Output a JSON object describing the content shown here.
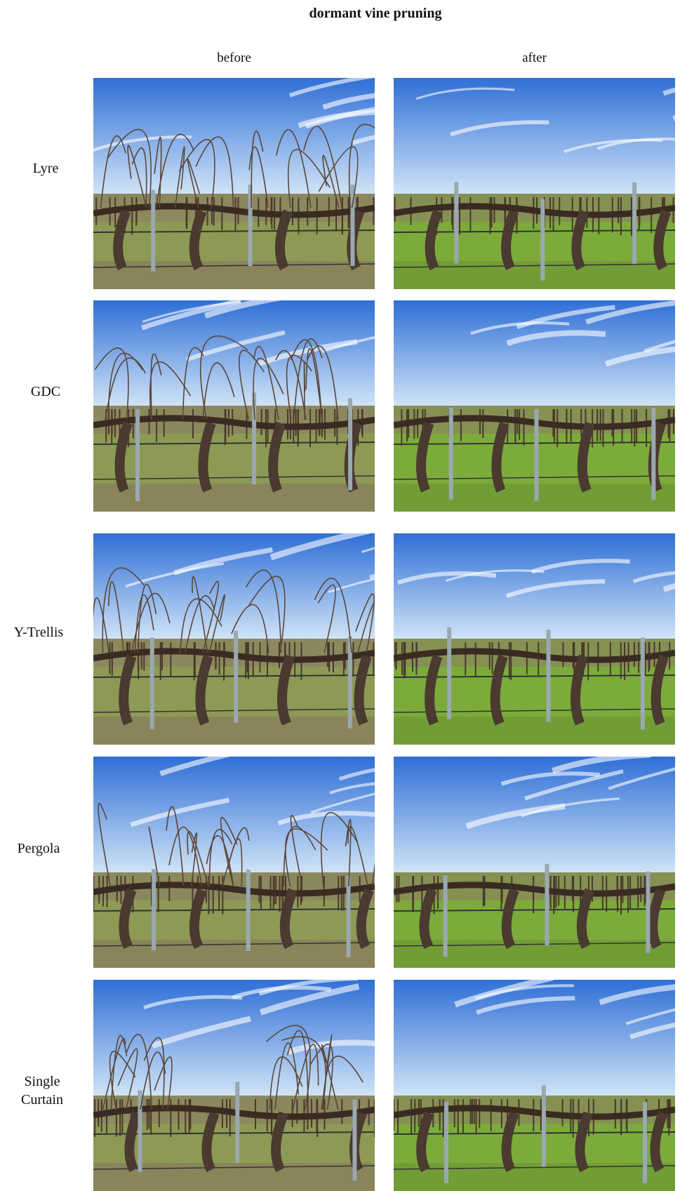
{
  "title": "dormant vine pruning",
  "columns": [
    "before",
    "after"
  ],
  "rows": [
    {
      "label": "Lyre"
    },
    {
      "label": "GDC"
    },
    {
      "label": "Y-Trellis"
    },
    {
      "label": "Pergola"
    },
    {
      "label": "Single Curtain"
    }
  ]
}
